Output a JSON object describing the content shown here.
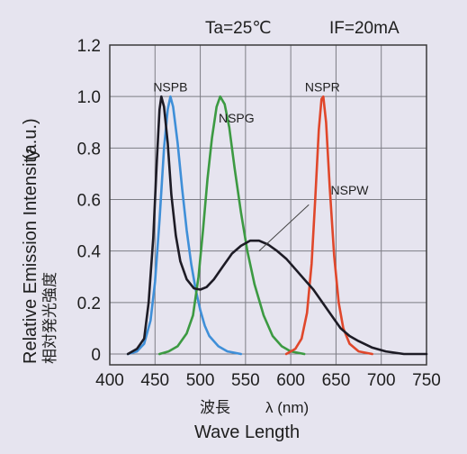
{
  "conditions": [
    "Ta=25℃",
    "IF=20mA"
  ],
  "chart_data": {
    "type": "line",
    "xlabel": "Wave Length",
    "xlabel_jp": "波長",
    "xlabel_unit": "λ (nm)",
    "ylabel": "Relative Emission Intensity",
    "ylabel_unit": "(a.u.)",
    "ylabel_jp": "相対発光強度",
    "xlim": [
      400,
      750
    ],
    "ylim": [
      0,
      1.2
    ],
    "x_ticks": [
      400,
      450,
      500,
      550,
      600,
      650,
      700,
      750
    ],
    "y_ticks": [
      {
        "value": 0,
        "label": "0"
      },
      {
        "value": 0.2,
        "label": "0.2"
      },
      {
        "value": 0.4,
        "label": "0.4"
      },
      {
        "value": 0.6,
        "label": "0.6"
      },
      {
        "value": 0.8,
        "label": "0.8"
      },
      {
        "value": 1.0,
        "label": "1.0"
      },
      {
        "value": 1.2,
        "label": "1.2"
      }
    ],
    "grid": true,
    "series": [
      {
        "name": "NSPB",
        "color": "#3f8fd8",
        "label_at": [
          467,
          1.02
        ],
        "points": [
          [
            420,
            0
          ],
          [
            430,
            0.01
          ],
          [
            438,
            0.04
          ],
          [
            445,
            0.13
          ],
          [
            450,
            0.28
          ],
          [
            455,
            0.52
          ],
          [
            460,
            0.8
          ],
          [
            464,
            0.95
          ],
          [
            467,
            1.0
          ],
          [
            470,
            0.96
          ],
          [
            475,
            0.82
          ],
          [
            480,
            0.64
          ],
          [
            485,
            0.48
          ],
          [
            490,
            0.35
          ],
          [
            495,
            0.25
          ],
          [
            500,
            0.17
          ],
          [
            505,
            0.11
          ],
          [
            510,
            0.07
          ],
          [
            520,
            0.03
          ],
          [
            530,
            0.01
          ],
          [
            545,
            0
          ]
        ]
      },
      {
        "name": "NSPG",
        "color": "#3c9a42",
        "label_at": [
          540,
          0.9
        ],
        "points": [
          [
            455,
            0
          ],
          [
            465,
            0.01
          ],
          [
            475,
            0.03
          ],
          [
            485,
            0.08
          ],
          [
            492,
            0.15
          ],
          [
            498,
            0.3
          ],
          [
            503,
            0.48
          ],
          [
            508,
            0.68
          ],
          [
            513,
            0.84
          ],
          [
            518,
            0.96
          ],
          [
            522,
            1.0
          ],
          [
            527,
            0.97
          ],
          [
            532,
            0.88
          ],
          [
            538,
            0.72
          ],
          [
            545,
            0.55
          ],
          [
            552,
            0.4
          ],
          [
            560,
            0.27
          ],
          [
            570,
            0.15
          ],
          [
            580,
            0.07
          ],
          [
            590,
            0.03
          ],
          [
            600,
            0.01
          ],
          [
            615,
            0
          ]
        ]
      },
      {
        "name": "NSPR",
        "color": "#e0472b",
        "label_at": [
          635,
          1.02
        ],
        "points": [
          [
            595,
            0
          ],
          [
            605,
            0.02
          ],
          [
            612,
            0.06
          ],
          [
            618,
            0.16
          ],
          [
            623,
            0.35
          ],
          [
            627,
            0.6
          ],
          [
            631,
            0.87
          ],
          [
            634,
            0.99
          ],
          [
            636,
            1.0
          ],
          [
            639,
            0.9
          ],
          [
            643,
            0.65
          ],
          [
            648,
            0.38
          ],
          [
            653,
            0.2
          ],
          [
            658,
            0.1
          ],
          [
            665,
            0.04
          ],
          [
            675,
            0.01
          ],
          [
            690,
            0
          ]
        ]
      },
      {
        "name": "NSPW",
        "color": "#1d1b25",
        "label_at": [
          665,
          0.62
        ],
        "leader": [
          [
            620,
            0.58
          ],
          [
            565,
            0.4
          ]
        ],
        "points": [
          [
            420,
            0
          ],
          [
            430,
            0.02
          ],
          [
            438,
            0.06
          ],
          [
            443,
            0.2
          ],
          [
            448,
            0.45
          ],
          [
            452,
            0.75
          ],
          [
            455,
            0.95
          ],
          [
            457,
            1.0
          ],
          [
            460,
            0.96
          ],
          [
            464,
            0.82
          ],
          [
            468,
            0.62
          ],
          [
            473,
            0.46
          ],
          [
            478,
            0.36
          ],
          [
            485,
            0.29
          ],
          [
            493,
            0.255
          ],
          [
            500,
            0.25
          ],
          [
            507,
            0.26
          ],
          [
            515,
            0.29
          ],
          [
            525,
            0.34
          ],
          [
            535,
            0.39
          ],
          [
            545,
            0.42
          ],
          [
            555,
            0.44
          ],
          [
            565,
            0.44
          ],
          [
            575,
            0.425
          ],
          [
            585,
            0.4
          ],
          [
            595,
            0.37
          ],
          [
            605,
            0.33
          ],
          [
            615,
            0.29
          ],
          [
            625,
            0.25
          ],
          [
            635,
            0.2
          ],
          [
            645,
            0.15
          ],
          [
            655,
            0.1
          ],
          [
            665,
            0.07
          ],
          [
            675,
            0.05
          ],
          [
            690,
            0.025
          ],
          [
            705,
            0.01
          ],
          [
            725,
            0
          ],
          [
            750,
            0
          ]
        ]
      }
    ]
  }
}
